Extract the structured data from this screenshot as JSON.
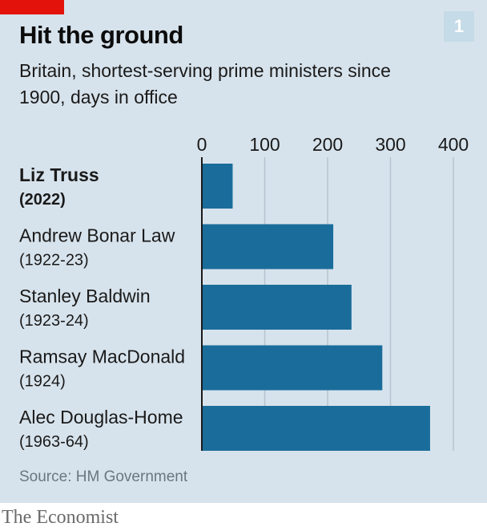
{
  "header": {
    "title": "Hit the ground",
    "subtitle": "Britain, shortest-serving prime ministers since 1900, days in office",
    "badge": "1"
  },
  "footer": {
    "source": "Source: HM Government",
    "logo": "The Economist"
  },
  "colors": {
    "bar": "#1a6d9b",
    "background": "#d7e3ec",
    "accent_red": "#e3120b",
    "gridline": "#b5c4cf"
  },
  "chart_data": {
    "type": "bar",
    "orientation": "horizontal",
    "categories": [
      {
        "name": "Liz Truss",
        "years": "(2022)",
        "highlight": true
      },
      {
        "name": "Andrew Bonar Law",
        "years": "(1922-23)",
        "highlight": false
      },
      {
        "name": "Stanley Baldwin",
        "years": "(1923-24)",
        "highlight": false
      },
      {
        "name": "Ramsay MacDonald",
        "years": "(1924)",
        "highlight": false
      },
      {
        "name": "Alec Douglas-Home",
        "years": "(1963-64)",
        "highlight": false
      }
    ],
    "values": [
      49,
      209,
      238,
      287,
      363
    ],
    "xlim": [
      0,
      400
    ],
    "xticks": [
      "0",
      "100",
      "200",
      "300",
      "400"
    ],
    "tick_values": [
      0,
      100,
      200,
      300,
      400
    ],
    "grid": true,
    "xaxis_position": "top"
  }
}
